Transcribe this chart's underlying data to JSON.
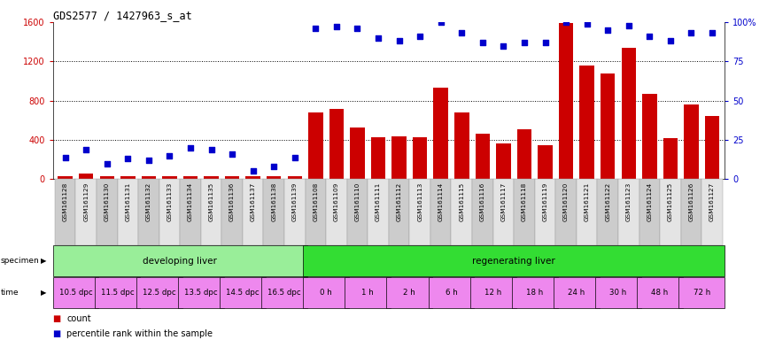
{
  "title": "GDS2577 / 1427963_s_at",
  "samples": [
    "GSM161128",
    "GSM161129",
    "GSM161130",
    "GSM161131",
    "GSM161132",
    "GSM161133",
    "GSM161134",
    "GSM161135",
    "GSM161136",
    "GSM161137",
    "GSM161138",
    "GSM161139",
    "GSM161108",
    "GSM161109",
    "GSM161110",
    "GSM161111",
    "GSM161112",
    "GSM161113",
    "GSM161114",
    "GSM161115",
    "GSM161116",
    "GSM161117",
    "GSM161118",
    "GSM161119",
    "GSM161120",
    "GSM161121",
    "GSM161122",
    "GSM161123",
    "GSM161124",
    "GSM161125",
    "GSM161126",
    "GSM161127"
  ],
  "counts": [
    30,
    60,
    30,
    30,
    30,
    30,
    30,
    30,
    30,
    30,
    30,
    30,
    680,
    720,
    530,
    430,
    435,
    425,
    930,
    680,
    460,
    360,
    510,
    350,
    1590,
    1160,
    1080,
    1340,
    870,
    420,
    760,
    640
  ],
  "percentiles": [
    14,
    19,
    10,
    13,
    12,
    15,
    20,
    19,
    16,
    5,
    8,
    14,
    96,
    97,
    96,
    90,
    88,
    91,
    100,
    93,
    87,
    85,
    87,
    87,
    100,
    99,
    95,
    98,
    91,
    88,
    93,
    93
  ],
  "ylim_left": [
    0,
    1600
  ],
  "ylim_right": [
    0,
    100
  ],
  "yticks_left": [
    0,
    400,
    800,
    1200,
    1600
  ],
  "yticks_right": [
    0,
    25,
    50,
    75,
    100
  ],
  "bar_color": "#cc0000",
  "dot_color": "#0000cc",
  "specimen_groups": [
    {
      "label": "developing liver",
      "start": 0,
      "end": 12,
      "color": "#99ee99"
    },
    {
      "label": "regenerating liver",
      "start": 12,
      "end": 32,
      "color": "#33dd33"
    }
  ],
  "time_spans": [
    {
      "label": "10.5 dpc",
      "start": 0,
      "end": 2
    },
    {
      "label": "11.5 dpc",
      "start": 2,
      "end": 4
    },
    {
      "label": "12.5 dpc",
      "start": 4,
      "end": 6
    },
    {
      "label": "13.5 dpc",
      "start": 6,
      "end": 8
    },
    {
      "label": "14.5 dpc",
      "start": 8,
      "end": 10
    },
    {
      "label": "16.5 dpc",
      "start": 10,
      "end": 12
    },
    {
      "label": "0 h",
      "start": 12,
      "end": 14
    },
    {
      "label": "1 h",
      "start": 14,
      "end": 16
    },
    {
      "label": "2 h",
      "start": 16,
      "end": 18
    },
    {
      "label": "6 h",
      "start": 18,
      "end": 20
    },
    {
      "label": "12 h",
      "start": 20,
      "end": 22
    },
    {
      "label": "18 h",
      "start": 22,
      "end": 24
    },
    {
      "label": "24 h",
      "start": 24,
      "end": 26
    },
    {
      "label": "30 h",
      "start": 26,
      "end": 28
    },
    {
      "label": "48 h",
      "start": 28,
      "end": 30
    },
    {
      "label": "72 h",
      "start": 30,
      "end": 32
    }
  ],
  "time_cell_color": "#ee88ee",
  "tick_bg_even": "#cccccc",
  "tick_bg_odd": "#e4e4e4",
  "legend_count_label": "count",
  "legend_pct_label": "percentile rank within the sample"
}
